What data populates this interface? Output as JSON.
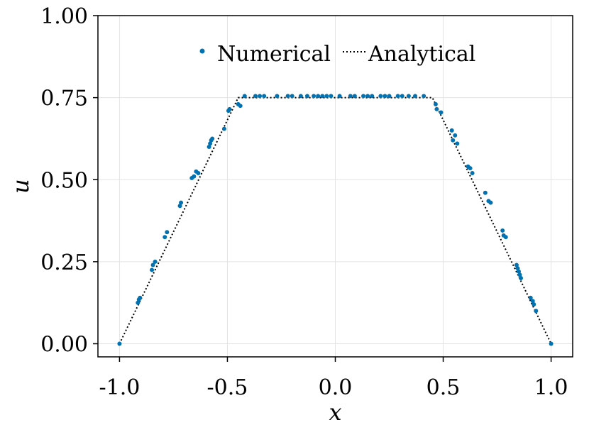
{
  "chart_data": {
    "type": "scatter",
    "xlabel": "x",
    "ylabel": "u",
    "xlim": [
      -1.1,
      1.1
    ],
    "ylim": [
      -0.04,
      1.0
    ],
    "x_ticks": [
      -1.0,
      -0.5,
      0.0,
      0.5,
      1.0
    ],
    "x_tick_labels": [
      "-1.0",
      "-0.5",
      "0.0",
      "0.5",
      "1.0"
    ],
    "y_ticks": [
      0.0,
      0.25,
      0.5,
      0.75,
      1.0
    ],
    "y_tick_labels": [
      "0.00",
      "0.25",
      "0.50",
      "0.75",
      "1.00"
    ],
    "grid": true,
    "legend_placement": "top-center",
    "colors": {
      "numerical": "#0072b2",
      "analytical": "#000000"
    },
    "series": [
      {
        "name": "Numerical",
        "kind": "scatter",
        "points": [
          [
            -1.0,
            0.0
          ],
          [
            -0.915,
            0.125
          ],
          [
            -0.91,
            0.135
          ],
          [
            -0.905,
            0.14
          ],
          [
            -0.85,
            0.225
          ],
          [
            -0.845,
            0.24
          ],
          [
            -0.835,
            0.25
          ],
          [
            -0.79,
            0.325
          ],
          [
            -0.78,
            0.34
          ],
          [
            -0.72,
            0.42
          ],
          [
            -0.715,
            0.43
          ],
          [
            -0.665,
            0.505
          ],
          [
            -0.655,
            0.51
          ],
          [
            -0.645,
            0.525
          ],
          [
            -0.635,
            0.52
          ],
          [
            -0.585,
            0.6
          ],
          [
            -0.58,
            0.61
          ],
          [
            -0.575,
            0.62
          ],
          [
            -0.57,
            0.625
          ],
          [
            -0.515,
            0.655
          ],
          [
            -0.495,
            0.71
          ],
          [
            -0.49,
            0.715
          ],
          [
            -0.45,
            0.73
          ],
          [
            -0.44,
            0.725
          ],
          [
            -0.42,
            0.755
          ],
          [
            -0.37,
            0.755
          ],
          [
            -0.35,
            0.755
          ],
          [
            -0.33,
            0.755
          ],
          [
            -0.27,
            0.755
          ],
          [
            -0.22,
            0.755
          ],
          [
            -0.2,
            0.755
          ],
          [
            -0.16,
            0.755
          ],
          [
            -0.13,
            0.755
          ],
          [
            -0.1,
            0.755
          ],
          [
            -0.08,
            0.755
          ],
          [
            -0.06,
            0.755
          ],
          [
            -0.04,
            0.755
          ],
          [
            -0.02,
            0.755
          ],
          [
            0.02,
            0.755
          ],
          [
            0.07,
            0.755
          ],
          [
            0.09,
            0.755
          ],
          [
            0.13,
            0.755
          ],
          [
            0.15,
            0.755
          ],
          [
            0.17,
            0.755
          ],
          [
            0.21,
            0.755
          ],
          [
            0.23,
            0.755
          ],
          [
            0.25,
            0.755
          ],
          [
            0.29,
            0.755
          ],
          [
            0.31,
            0.755
          ],
          [
            0.34,
            0.755
          ],
          [
            0.37,
            0.755
          ],
          [
            0.41,
            0.755
          ],
          [
            0.465,
            0.73
          ],
          [
            0.47,
            0.715
          ],
          [
            0.49,
            0.705
          ],
          [
            0.54,
            0.65
          ],
          [
            0.545,
            0.62
          ],
          [
            0.555,
            0.635
          ],
          [
            0.565,
            0.61
          ],
          [
            0.615,
            0.54
          ],
          [
            0.625,
            0.535
          ],
          [
            0.635,
            0.52
          ],
          [
            0.695,
            0.46
          ],
          [
            0.71,
            0.435
          ],
          [
            0.72,
            0.43
          ],
          [
            0.775,
            0.345
          ],
          [
            0.78,
            0.33
          ],
          [
            0.79,
            0.325
          ],
          [
            0.84,
            0.24
          ],
          [
            0.845,
            0.23
          ],
          [
            0.85,
            0.22
          ],
          [
            0.855,
            0.21
          ],
          [
            0.86,
            0.2
          ],
          [
            0.905,
            0.14
          ],
          [
            0.915,
            0.13
          ],
          [
            0.92,
            0.12
          ],
          [
            0.93,
            0.1
          ],
          [
            1.0,
            0.0
          ]
        ]
      },
      {
        "name": "Analytical",
        "kind": "dotted-line",
        "points": [
          [
            -1.0,
            0.0
          ],
          [
            -0.45,
            0.75
          ],
          [
            0.45,
            0.75
          ],
          [
            1.0,
            0.0
          ]
        ]
      }
    ]
  }
}
